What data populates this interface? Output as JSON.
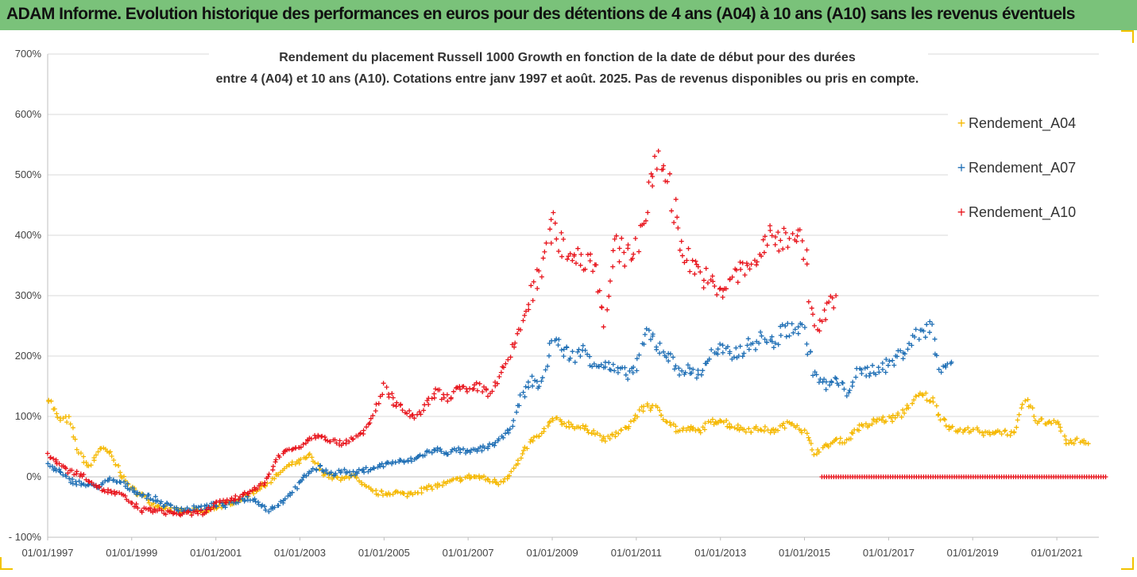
{
  "banner": {
    "title": "ADAM Informe. Evolution historique des performances en euros pour des détentions de 4 ans (A04) à 10 ans (A10) sans les revenus éventuels"
  },
  "colors": {
    "banner_bg": "#7ac27a",
    "A04": "#f5b800",
    "A07": "#1f6fb5",
    "A10": "#e8141c"
  },
  "chart_data": {
    "type": "scatter",
    "title": [
      "Rendement du placement Russell 1000 Growth en fonction de la date de début pour des durées",
      "entre 4 (A04) et 10 ans (A10). Cotations entre janv 1997 et août. 2025. Pas de revenus disponibles ou pris en compte."
    ],
    "marker": "+",
    "xlim": [
      "1997-01-01",
      "2022-01-01"
    ],
    "ylim": [
      -100,
      700
    ],
    "y_unit": "%",
    "grid": "horizontal",
    "legend_position": "right",
    "x_tick_labels": [
      "01/01/1997",
      "01/01/1999",
      "01/01/2001",
      "01/01/2003",
      "01/01/2005",
      "01/01/2007",
      "01/01/2009",
      "01/01/2011",
      "01/01/2013",
      "01/01/2015",
      "01/01/2017",
      "01/01/2019",
      "01/01/2021"
    ],
    "y_tick_labels": [
      "- 100%",
      "0%",
      "100%",
      "200%",
      "300%",
      "400%",
      "500%",
      "600%",
      "700%"
    ],
    "series": [
      {
        "name": "Rendement_A04",
        "color": "#f5b800",
        "points": [
          [
            "1997-01-01",
            135
          ],
          [
            "1997-04-01",
            95
          ],
          [
            "1997-07-01",
            95
          ],
          [
            "1997-10-01",
            40
          ],
          [
            "1998-01-01",
            15
          ],
          [
            "1998-04-01",
            48
          ],
          [
            "1998-07-01",
            38
          ],
          [
            "1998-10-01",
            5
          ],
          [
            "1999-01-01",
            -20
          ],
          [
            "1999-04-01",
            -30
          ],
          [
            "1999-07-01",
            -45
          ],
          [
            "1999-10-01",
            -50
          ],
          [
            "2000-01-01",
            -55
          ],
          [
            "2000-04-01",
            -58
          ],
          [
            "2000-07-01",
            -55
          ],
          [
            "2000-10-01",
            -60
          ],
          [
            "2001-01-01",
            -50
          ],
          [
            "2001-04-01",
            -45
          ],
          [
            "2001-07-01",
            -40
          ],
          [
            "2001-10-01",
            -30
          ],
          [
            "2002-01-01",
            -20
          ],
          [
            "2002-04-01",
            -10
          ],
          [
            "2002-07-01",
            5
          ],
          [
            "2002-10-01",
            20
          ],
          [
            "2003-01-01",
            25
          ],
          [
            "2003-04-01",
            35
          ],
          [
            "2003-07-01",
            10
          ],
          [
            "2003-10-01",
            0
          ],
          [
            "2004-01-01",
            -5
          ],
          [
            "2004-04-01",
            5
          ],
          [
            "2004-07-01",
            -15
          ],
          [
            "2004-10-01",
            -25
          ],
          [
            "2005-01-01",
            -28
          ],
          [
            "2005-04-01",
            -25
          ],
          [
            "2005-07-01",
            -30
          ],
          [
            "2005-10-01",
            -25
          ],
          [
            "2006-01-01",
            -20
          ],
          [
            "2006-04-01",
            -15
          ],
          [
            "2006-07-01",
            -10
          ],
          [
            "2006-10-01",
            -5
          ],
          [
            "2007-01-01",
            0
          ],
          [
            "2007-04-01",
            0
          ],
          [
            "2007-07-01",
            -5
          ],
          [
            "2007-10-01",
            -10
          ],
          [
            "2008-01-01",
            5
          ],
          [
            "2008-04-01",
            30
          ],
          [
            "2008-07-01",
            60
          ],
          [
            "2008-10-01",
            70
          ],
          [
            "2009-01-01",
            95
          ],
          [
            "2009-04-01",
            90
          ],
          [
            "2009-07-01",
            85
          ],
          [
            "2009-10-01",
            80
          ],
          [
            "2010-01-01",
            75
          ],
          [
            "2010-04-01",
            60
          ],
          [
            "2010-07-01",
            70
          ],
          [
            "2010-10-01",
            80
          ],
          [
            "2011-01-01",
            100
          ],
          [
            "2011-04-01",
            120
          ],
          [
            "2011-07-01",
            110
          ],
          [
            "2011-10-01",
            95
          ],
          [
            "2012-01-01",
            75
          ],
          [
            "2012-04-01",
            80
          ],
          [
            "2012-07-01",
            75
          ],
          [
            "2012-10-01",
            90
          ],
          [
            "2013-01-01",
            95
          ],
          [
            "2013-04-01",
            85
          ],
          [
            "2013-07-01",
            80
          ],
          [
            "2013-10-01",
            78
          ],
          [
            "2014-01-01",
            80
          ],
          [
            "2014-04-01",
            75
          ],
          [
            "2014-07-01",
            85
          ],
          [
            "2014-10-01",
            90
          ],
          [
            "2015-01-01",
            75
          ],
          [
            "2015-04-01",
            40
          ],
          [
            "2015-07-01",
            50
          ],
          [
            "2015-10-01",
            60
          ],
          [
            "2016-01-01",
            60
          ],
          [
            "2016-04-01",
            80
          ],
          [
            "2016-07-01",
            85
          ],
          [
            "2016-10-01",
            95
          ],
          [
            "2017-01-01",
            95
          ],
          [
            "2017-04-01",
            100
          ],
          [
            "2017-07-01",
            120
          ],
          [
            "2017-10-01",
            135
          ],
          [
            "2018-01-01",
            130
          ],
          [
            "2018-04-01",
            100
          ],
          [
            "2018-07-01",
            80
          ],
          [
            "2018-10-01",
            75
          ],
          [
            "2019-01-01",
            80
          ],
          [
            "2019-04-01",
            70
          ],
          [
            "2019-07-01",
            75
          ],
          [
            "2019-10-01",
            75
          ],
          [
            "2020-01-01",
            70
          ],
          [
            "2020-04-01",
            130
          ],
          [
            "2020-07-01",
            95
          ],
          [
            "2020-10-01",
            90
          ],
          [
            "2021-01-01",
            95
          ],
          [
            "2021-04-01",
            55
          ],
          [
            "2021-07-01",
            60
          ],
          [
            "2021-10-01",
            55
          ]
        ]
      },
      {
        "name": "Rendement_A07",
        "color": "#1f6fb5",
        "points": [
          [
            "1997-01-01",
            20
          ],
          [
            "1997-04-01",
            10
          ],
          [
            "1997-07-01",
            -5
          ],
          [
            "1997-10-01",
            -10
          ],
          [
            "1998-01-01",
            -15
          ],
          [
            "1998-04-01",
            -15
          ],
          [
            "1998-07-01",
            -5
          ],
          [
            "1998-10-01",
            -10
          ],
          [
            "1999-01-01",
            -20
          ],
          [
            "1999-04-01",
            -30
          ],
          [
            "1999-07-01",
            -35
          ],
          [
            "1999-10-01",
            -45
          ],
          [
            "2000-01-01",
            -50
          ],
          [
            "2000-04-01",
            -55
          ],
          [
            "2000-07-01",
            -52
          ],
          [
            "2000-10-01",
            -50
          ],
          [
            "2001-01-01",
            -45
          ],
          [
            "2001-04-01",
            -48
          ],
          [
            "2001-07-01",
            -40
          ],
          [
            "2001-10-01",
            -35
          ],
          [
            "2002-01-01",
            -40
          ],
          [
            "2002-04-01",
            -55
          ],
          [
            "2002-07-01",
            -45
          ],
          [
            "2002-10-01",
            -30
          ],
          [
            "2003-01-01",
            -10
          ],
          [
            "2003-04-01",
            10
          ],
          [
            "2003-07-01",
            15
          ],
          [
            "2003-10-01",
            5
          ],
          [
            "2004-01-01",
            10
          ],
          [
            "2004-04-01",
            5
          ],
          [
            "2004-07-01",
            10
          ],
          [
            "2004-10-01",
            15
          ],
          [
            "2005-01-01",
            20
          ],
          [
            "2005-04-01",
            25
          ],
          [
            "2005-07-01",
            25
          ],
          [
            "2005-10-01",
            30
          ],
          [
            "2006-01-01",
            40
          ],
          [
            "2006-04-01",
            45
          ],
          [
            "2006-07-01",
            40
          ],
          [
            "2006-10-01",
            45
          ],
          [
            "2007-01-01",
            40
          ],
          [
            "2007-04-01",
            45
          ],
          [
            "2007-07-01",
            50
          ],
          [
            "2007-10-01",
            60
          ],
          [
            "2008-01-01",
            80
          ],
          [
            "2008-04-01",
            130
          ],
          [
            "2008-07-01",
            160
          ],
          [
            "2008-10-01",
            150
          ],
          [
            "2009-01-01",
            230
          ],
          [
            "2009-04-01",
            210
          ],
          [
            "2009-07-01",
            200
          ],
          [
            "2009-10-01",
            210
          ],
          [
            "2010-01-01",
            190
          ],
          [
            "2010-04-01",
            185
          ],
          [
            "2010-07-01",
            175
          ],
          [
            "2010-10-01",
            170
          ],
          [
            "2011-01-01",
            180
          ],
          [
            "2011-04-01",
            240
          ],
          [
            "2011-07-01",
            220
          ],
          [
            "2011-10-01",
            200
          ],
          [
            "2012-01-01",
            180
          ],
          [
            "2012-04-01",
            175
          ],
          [
            "2012-07-01",
            170
          ],
          [
            "2012-10-01",
            200
          ],
          [
            "2013-01-01",
            210
          ],
          [
            "2013-04-01",
            200
          ],
          [
            "2013-07-01",
            210
          ],
          [
            "2013-10-01",
            220
          ],
          [
            "2014-01-01",
            230
          ],
          [
            "2014-04-01",
            220
          ],
          [
            "2014-07-01",
            240
          ],
          [
            "2014-10-01",
            250
          ],
          [
            "2015-01-01",
            240
          ],
          [
            "2015-04-01",
            170
          ],
          [
            "2015-07-01",
            150
          ],
          [
            "2015-10-01",
            160
          ],
          [
            "2016-01-01",
            140
          ],
          [
            "2016-04-01",
            170
          ],
          [
            "2016-07-01",
            175
          ],
          [
            "2016-10-01",
            180
          ],
          [
            "2017-01-01",
            185
          ],
          [
            "2017-04-01",
            200
          ],
          [
            "2017-07-01",
            220
          ],
          [
            "2017-10-01",
            240
          ],
          [
            "2018-01-01",
            250
          ],
          [
            "2018-04-01",
            180
          ],
          [
            "2018-07-01",
            190
          ]
        ]
      },
      {
        "name": "Rendement_A10",
        "color": "#e8141c",
        "points": [
          [
            "1997-01-01",
            35
          ],
          [
            "1997-04-01",
            25
          ],
          [
            "1997-07-01",
            10
          ],
          [
            "1997-10-01",
            5
          ],
          [
            "1998-01-01",
            -5
          ],
          [
            "1998-04-01",
            -20
          ],
          [
            "1998-07-01",
            -25
          ],
          [
            "1998-10-01",
            -30
          ],
          [
            "1999-01-01",
            -45
          ],
          [
            "1999-04-01",
            -55
          ],
          [
            "1999-07-01",
            -55
          ],
          [
            "1999-10-01",
            -58
          ],
          [
            "2000-01-01",
            -60
          ],
          [
            "2000-04-01",
            -62
          ],
          [
            "2000-07-01",
            -60
          ],
          [
            "2000-10-01",
            -58
          ],
          [
            "2001-01-01",
            -45
          ],
          [
            "2001-04-01",
            -40
          ],
          [
            "2001-07-01",
            -35
          ],
          [
            "2001-10-01",
            -25
          ],
          [
            "2002-01-01",
            -20
          ],
          [
            "2002-04-01",
            0
          ],
          [
            "2002-07-01",
            35
          ],
          [
            "2002-10-01",
            45
          ],
          [
            "2003-01-01",
            50
          ],
          [
            "2003-04-01",
            65
          ],
          [
            "2003-07-01",
            70
          ],
          [
            "2003-10-01",
            60
          ],
          [
            "2004-01-01",
            55
          ],
          [
            "2004-04-01",
            65
          ],
          [
            "2004-07-01",
            70
          ],
          [
            "2004-10-01",
            100
          ],
          [
            "2005-01-01",
            150
          ],
          [
            "2005-04-01",
            120
          ],
          [
            "2005-07-01",
            110
          ],
          [
            "2005-10-01",
            95
          ],
          [
            "2006-01-01",
            120
          ],
          [
            "2006-04-01",
            140
          ],
          [
            "2006-07-01",
            130
          ],
          [
            "2006-10-01",
            145
          ],
          [
            "2007-01-01",
            140
          ],
          [
            "2007-04-01",
            150
          ],
          [
            "2007-07-01",
            140
          ],
          [
            "2007-10-01",
            160
          ],
          [
            "2008-01-01",
            200
          ],
          [
            "2008-04-01",
            250
          ],
          [
            "2008-07-01",
            300
          ],
          [
            "2008-10-01",
            340
          ],
          [
            "2009-01-01",
            420
          ],
          [
            "2009-04-01",
            380
          ],
          [
            "2009-07-01",
            370
          ],
          [
            "2009-10-01",
            360
          ],
          [
            "2010-01-01",
            360
          ],
          [
            "2010-04-01",
            260
          ],
          [
            "2010-07-01",
            380
          ],
          [
            "2010-10-01",
            370
          ],
          [
            "2011-01-01",
            380
          ],
          [
            "2011-04-01",
            450
          ],
          [
            "2011-07-01",
            530
          ],
          [
            "2011-10-01",
            500
          ],
          [
            "2012-01-01",
            400
          ],
          [
            "2012-04-01",
            360
          ],
          [
            "2012-07-01",
            340
          ],
          [
            "2012-10-01",
            320
          ],
          [
            "2013-01-01",
            300
          ],
          [
            "2013-04-01",
            330
          ],
          [
            "2013-07-01",
            340
          ],
          [
            "2013-10-01",
            350
          ],
          [
            "2014-01-01",
            380
          ],
          [
            "2014-04-01",
            400
          ],
          [
            "2014-07-01",
            390
          ],
          [
            "2014-10-01",
            410
          ],
          [
            "2015-01-01",
            380
          ],
          [
            "2015-04-01",
            240
          ],
          [
            "2015-07-01",
            270
          ],
          [
            "2015-10-01",
            300
          ]
        ],
        "zero_band": [
          "2015-06-01",
          "2022-03-01",
          0
        ]
      }
    ]
  }
}
